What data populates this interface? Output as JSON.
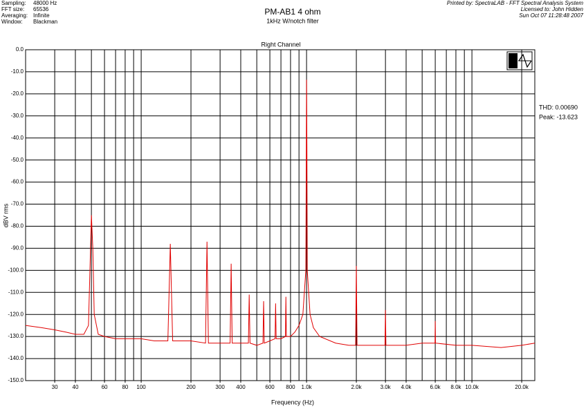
{
  "header": {
    "left": [
      [
        "Sampling:",
        "48000 Hz"
      ],
      [
        "FFT size:",
        "65536"
      ],
      [
        "Averaging:",
        "Infinite"
      ],
      [
        "Window:",
        "Blackman"
      ]
    ],
    "title": "PM-AB1  4 ohm",
    "subtitle": "1kHz W/notch filter",
    "right": [
      "Printed by: SpectraLAB - FFT Spectral Analysis System",
      "Licensed to: John Hidden",
      "Sun Oct 07 11:28:48 2007"
    ]
  },
  "chart_data": {
    "type": "line",
    "title": "Right Channel",
    "x_label": "Frequency (Hz)",
    "y_label": "dBV rms",
    "annotations": [
      "THD: 0.00690",
      "Peak: -13.623"
    ],
    "x_log": true,
    "grid": true,
    "color": "#e00000",
    "xlim": [
      20,
      24000
    ],
    "ylim": [
      -150,
      0
    ],
    "xticks": [
      30,
      40,
      60,
      80,
      100,
      200,
      300,
      400,
      600,
      800,
      {
        "value": 1000,
        "label": "1.0k"
      },
      {
        "value": 2000,
        "label": "2.0k"
      },
      {
        "value": 3000,
        "label": "3.0k"
      },
      {
        "value": 4000,
        "label": "4.0k"
      },
      {
        "value": 6000,
        "label": "6.0k"
      },
      {
        "value": 8000,
        "label": "8.0k"
      },
      {
        "value": 10000,
        "label": "10.0k"
      },
      {
        "value": 20000,
        "label": "20.0k"
      }
    ],
    "x_minor_gridlines": [
      50,
      70,
      90,
      500,
      700,
      900,
      5000,
      7000,
      9000
    ],
    "yticks": [
      {
        "value": 0,
        "label": "0.0"
      },
      {
        "value": -10,
        "label": "-10.0"
      },
      {
        "value": -20,
        "label": "-20.0"
      },
      {
        "value": -30,
        "label": "-30.0"
      },
      {
        "value": -40,
        "label": "-40.0"
      },
      {
        "value": -50,
        "label": "-50.0"
      },
      {
        "value": -60,
        "label": "-60.0"
      },
      {
        "value": -70,
        "label": "-70.0"
      },
      {
        "value": -80,
        "label": "-80.0"
      },
      {
        "value": -90,
        "label": "-90.0"
      },
      {
        "value": -100,
        "label": "-100.0"
      },
      {
        "value": -110,
        "label": "-110.0"
      },
      {
        "value": -120,
        "label": "-120.0"
      },
      {
        "value": -130,
        "label": "-130.0"
      },
      {
        "value": -140,
        "label": "-140.0"
      },
      {
        "value": -150,
        "label": "-150.0"
      }
    ],
    "x": [
      20,
      25,
      30,
      35,
      40,
      45,
      48,
      50,
      51,
      52,
      55,
      60,
      70,
      80,
      100,
      120,
      145,
      150,
      155,
      180,
      200,
      245,
      250,
      255,
      300,
      345,
      350,
      355,
      400,
      445,
      450,
      455,
      500,
      545,
      550,
      555,
      600,
      645,
      650,
      655,
      700,
      745,
      750,
      755,
      800,
      850,
      900,
      950,
      990,
      1000,
      1005,
      1010,
      1050,
      1100,
      1200,
      1500,
      1800,
      1980,
      2000,
      2020,
      2500,
      2980,
      3000,
      3020,
      4000,
      5000,
      5980,
      6000,
      6020,
      8000,
      10000,
      15000,
      20000,
      24000
    ],
    "values": [
      -125,
      -126,
      -127,
      -128,
      -129,
      -129,
      -125,
      -75,
      -90,
      -120,
      -129,
      -130,
      -131,
      -131,
      -131,
      -132,
      -132,
      -88,
      -132,
      -132,
      -132,
      -133,
      -87,
      -133,
      -133,
      -133,
      -97,
      -133,
      -133,
      -133,
      -111,
      -133,
      -134,
      -133,
      -114,
      -133,
      -132,
      -131,
      -115,
      -131,
      -131,
      -130,
      -112,
      -130,
      -130,
      -128,
      -125,
      -120,
      -100,
      -13.6,
      -44,
      -100,
      -120,
      -126,
      -130,
      -133,
      -134,
      -134,
      -98,
      -134,
      -134,
      -134,
      -118,
      -134,
      -134,
      -133,
      -133,
      -123,
      -133,
      -134,
      -134,
      -135,
      -134,
      -133
    ]
  }
}
